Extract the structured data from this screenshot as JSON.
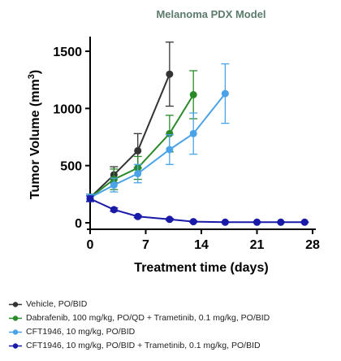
{
  "chart_data": {
    "type": "line",
    "title": "Melanoma PDX Model",
    "xlabel": "Treatment time (days)",
    "ylabel_main": "Tumor Volume (mm",
    "ylabel_sup": "3",
    "ylabel_end": ")",
    "xlim": [
      0,
      28
    ],
    "ylim": [
      0,
      1600
    ],
    "xticks": [
      0,
      7,
      14,
      21,
      28
    ],
    "yticks": [
      0,
      500,
      1000,
      1500
    ],
    "grid": false,
    "legend_placement": "bottom",
    "series": [
      {
        "name": "Vehicle, PO/BID",
        "color": "#333333",
        "x": [
          0,
          3,
          6,
          10
        ],
        "y": [
          220,
          420,
          630,
          1300
        ],
        "err": [
          30,
          70,
          150,
          280
        ]
      },
      {
        "name": "Dabrafenib, 100 mg/kg, PO/QD  + Trametinib, 0.1 mg/kg, PO/BID",
        "color": "#2a8a2a",
        "x": [
          0,
          3,
          6,
          10,
          13
        ],
        "y": [
          220,
          380,
          480,
          780,
          1120
        ],
        "err": [
          30,
          90,
          100,
          160,
          210
        ]
      },
      {
        "name": "CFT1946, 10 mg/kg, PO/BID",
        "color": "#4aa3e8",
        "x": [
          0,
          3,
          6,
          10,
          13,
          17
        ],
        "y": [
          220,
          330,
          430,
          640,
          780,
          1130
        ],
        "err": [
          30,
          60,
          80,
          130,
          180,
          260
        ]
      },
      {
        "name": "CFT1946, 10 mg/kg, PO/BID + Trametinib, 0.1 mg/kg, PO/BID",
        "color": "#1a1aa8",
        "x": [
          0,
          3,
          6,
          10,
          13,
          17,
          21,
          24,
          27
        ],
        "y": [
          210,
          115,
          55,
          30,
          10,
          5,
          5,
          5,
          5
        ],
        "err": [
          25,
          15,
          10,
          8,
          5,
          3,
          3,
          3,
          3
        ]
      }
    ]
  }
}
